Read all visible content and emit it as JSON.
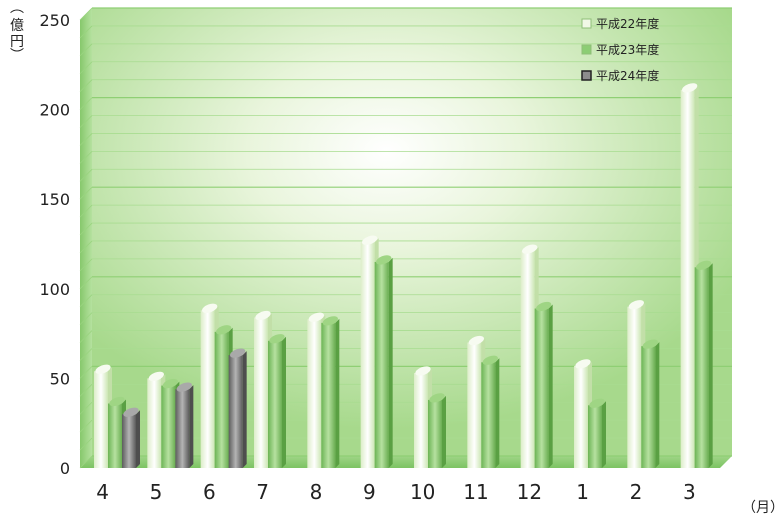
{
  "chart_data": {
    "type": "bar",
    "categories": [
      "4",
      "5",
      "6",
      "7",
      "8",
      "9",
      "10",
      "11",
      "12",
      "1",
      "2",
      "3"
    ],
    "series": [
      {
        "name": "平成22年度",
        "color": "#f1f8e6",
        "values": [
          54,
          50,
          88,
          84,
          83,
          126,
          53,
          70,
          121,
          57,
          90,
          211
        ]
      },
      {
        "name": "平成23年度",
        "color": "#8ccd74",
        "values": [
          36,
          46,
          76,
          71,
          81,
          115,
          38,
          59,
          89,
          35,
          68,
          112
        ]
      },
      {
        "name": "平成24年度",
        "color": "#8c8c8c",
        "values": [
          30,
          44,
          63,
          null,
          null,
          null,
          null,
          null,
          null,
          null,
          null,
          null
        ]
      }
    ],
    "ylabel": "億円",
    "xunit": "（月）",
    "ylim": [
      0,
      250
    ],
    "yticks": [
      0,
      50,
      100,
      150,
      200,
      250
    ],
    "grid": true,
    "legend": "top-right"
  }
}
